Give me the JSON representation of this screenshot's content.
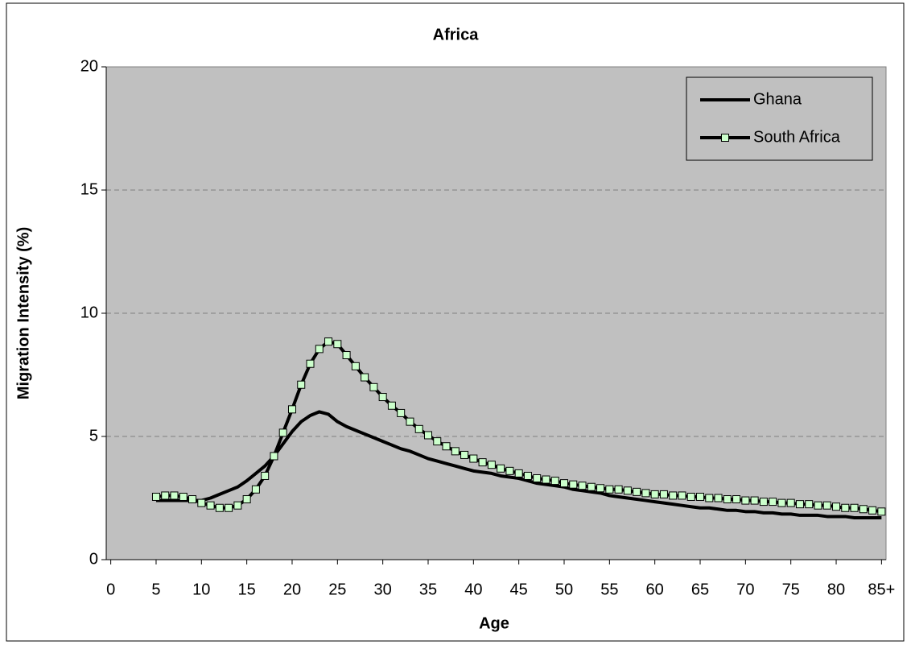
{
  "chart_data": {
    "type": "line",
    "title": "Africa",
    "x_label": "Age",
    "y_label": "Migration Intensity (%)",
    "x": [
      5,
      6,
      7,
      8,
      9,
      10,
      11,
      12,
      13,
      14,
      15,
      16,
      17,
      18,
      19,
      20,
      21,
      22,
      23,
      24,
      25,
      26,
      27,
      28,
      29,
      30,
      31,
      32,
      33,
      34,
      35,
      36,
      37,
      38,
      39,
      40,
      41,
      42,
      43,
      44,
      45,
      46,
      47,
      48,
      49,
      50,
      51,
      52,
      53,
      54,
      55,
      56,
      57,
      58,
      59,
      60,
      61,
      62,
      63,
      64,
      65,
      66,
      67,
      68,
      69,
      70,
      71,
      72,
      73,
      74,
      75,
      76,
      77,
      78,
      79,
      80,
      81,
      82,
      83,
      84,
      85
    ],
    "series": [
      {
        "name": "Ghana",
        "color": "#000000",
        "marker": false,
        "values": [
          2.4,
          2.4,
          2.4,
          2.4,
          2.4,
          2.4,
          2.5,
          2.65,
          2.8,
          2.95,
          3.2,
          3.5,
          3.8,
          4.2,
          4.7,
          5.2,
          5.6,
          5.85,
          6.0,
          5.9,
          5.6,
          5.4,
          5.25,
          5.1,
          4.95,
          4.8,
          4.65,
          4.5,
          4.4,
          4.25,
          4.1,
          4.0,
          3.9,
          3.8,
          3.7,
          3.6,
          3.55,
          3.5,
          3.4,
          3.35,
          3.3,
          3.2,
          3.1,
          3.05,
          3.0,
          2.95,
          2.85,
          2.8,
          2.75,
          2.7,
          2.6,
          2.55,
          2.5,
          2.45,
          2.4,
          2.35,
          2.3,
          2.25,
          2.2,
          2.15,
          2.1,
          2.1,
          2.05,
          2.0,
          2.0,
          1.95,
          1.95,
          1.9,
          1.9,
          1.85,
          1.85,
          1.8,
          1.8,
          1.8,
          1.75,
          1.75,
          1.75,
          1.7,
          1.7,
          1.7,
          1.7
        ]
      },
      {
        "name": "South Africa",
        "color": "#000000",
        "marker": true,
        "marker_color": "#ccffcc",
        "values": [
          2.55,
          2.6,
          2.6,
          2.55,
          2.45,
          2.3,
          2.2,
          2.1,
          2.1,
          2.2,
          2.45,
          2.85,
          3.4,
          4.2,
          5.15,
          6.1,
          7.1,
          7.95,
          8.55,
          8.85,
          8.75,
          8.3,
          7.85,
          7.4,
          7.0,
          6.6,
          6.25,
          5.95,
          5.6,
          5.3,
          5.05,
          4.8,
          4.6,
          4.4,
          4.25,
          4.1,
          3.95,
          3.85,
          3.7,
          3.6,
          3.5,
          3.4,
          3.3,
          3.25,
          3.2,
          3.1,
          3.05,
          3.0,
          2.95,
          2.9,
          2.85,
          2.85,
          2.8,
          2.75,
          2.7,
          2.65,
          2.65,
          2.6,
          2.6,
          2.55,
          2.55,
          2.5,
          2.5,
          2.45,
          2.45,
          2.4,
          2.4,
          2.35,
          2.35,
          2.3,
          2.3,
          2.25,
          2.25,
          2.2,
          2.2,
          2.15,
          2.1,
          2.1,
          2.05,
          2.0,
          1.95
        ]
      }
    ],
    "xlim": [
      -0.5,
      85.5
    ],
    "xticks": [
      0,
      5,
      10,
      15,
      20,
      25,
      30,
      35,
      40,
      45,
      50,
      55,
      60,
      65,
      70,
      75,
      80,
      {
        "value": 85,
        "label": "85+"
      }
    ],
    "ylim": [
      0,
      20
    ],
    "yticks": [
      0,
      5,
      10,
      15,
      20
    ],
    "grid": true,
    "plot_background": "#c0c0c0",
    "legend": "upper right"
  }
}
